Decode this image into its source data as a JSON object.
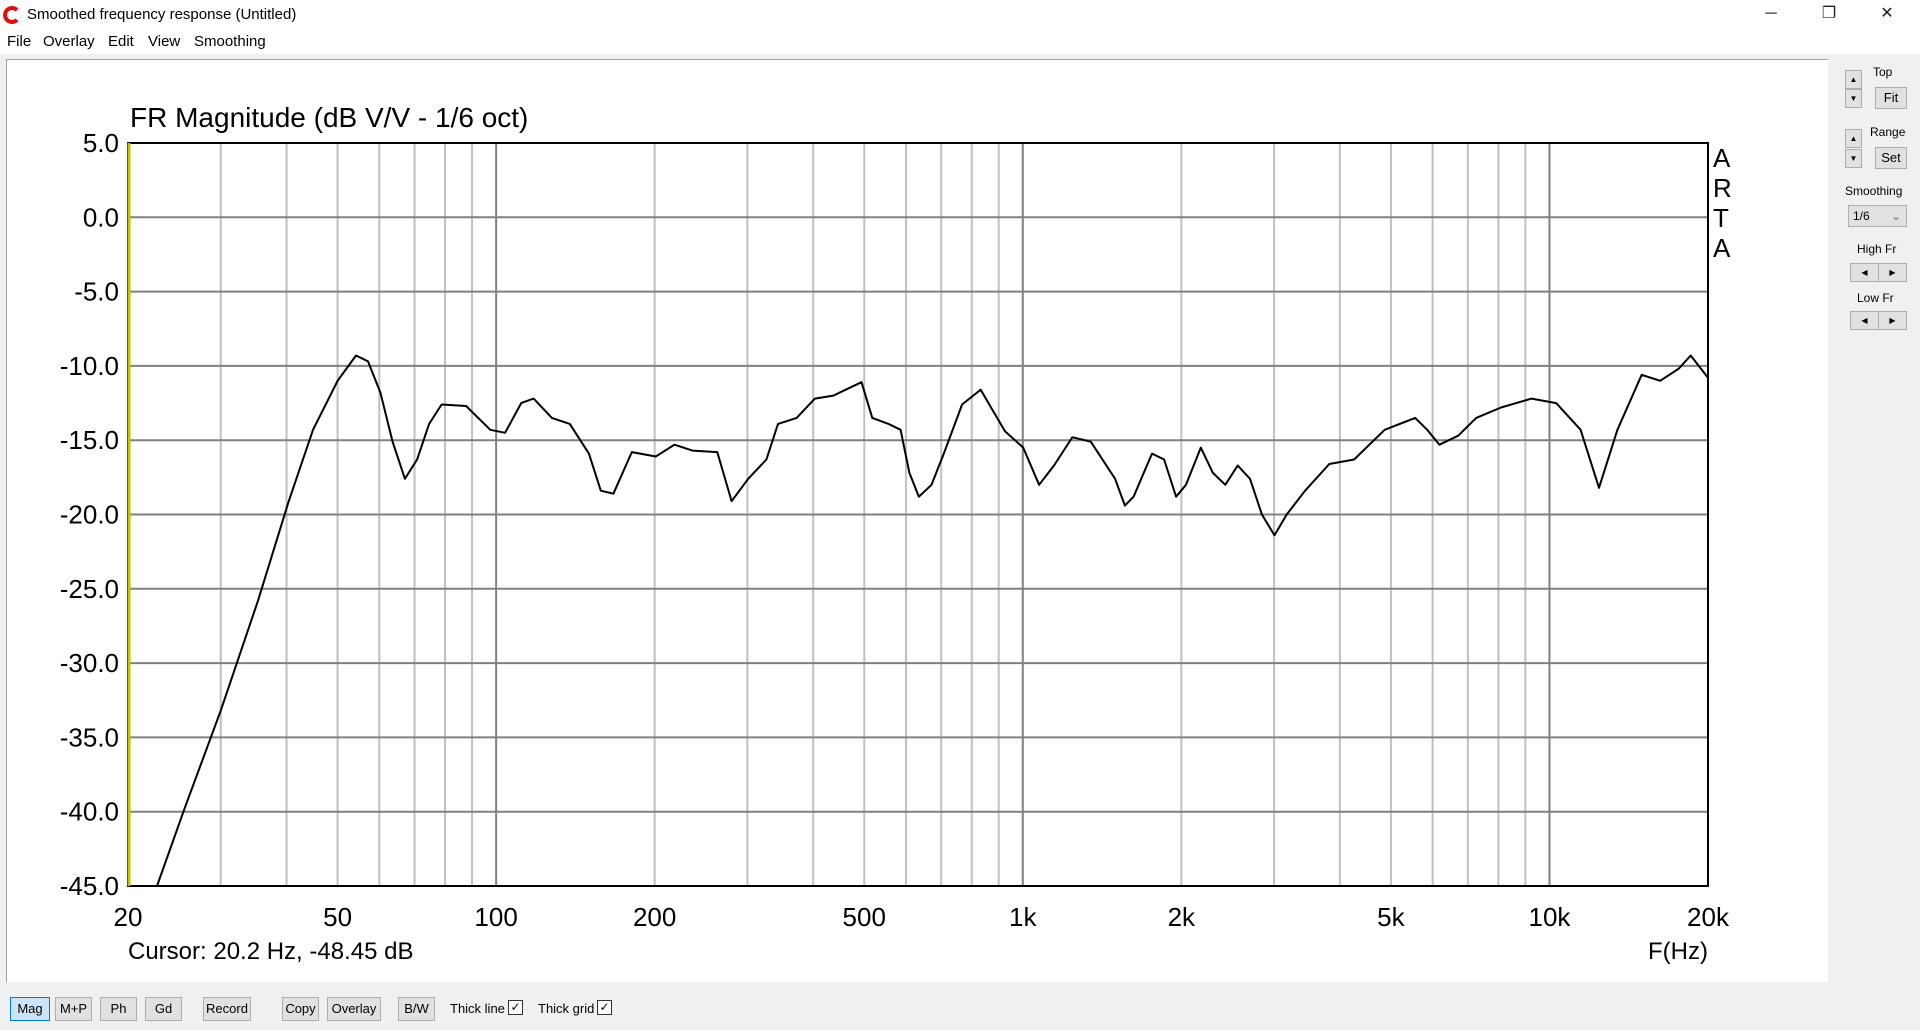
{
  "window": {
    "title": "Smoothed frequency response (Untitled)",
    "minimize": "─",
    "maximize": "❐",
    "close": "✕"
  },
  "menu": [
    "File",
    "Overlay",
    "Edit",
    "View",
    "Smoothing"
  ],
  "side": {
    "top_label": "Top",
    "fit": "Fit",
    "range_label": "Range",
    "set": "Set",
    "smoothing_label": "Smoothing",
    "smoothing_value": "1/6",
    "high_fr": "High Fr",
    "low_fr": "Low Fr",
    "up": "▲",
    "down": "▼",
    "left": "◀",
    "right": "▶"
  },
  "toolbar": {
    "buttons": [
      "Mag",
      "M+P",
      "Ph",
      "Gd",
      "Record",
      "Copy",
      "Overlay",
      "B/W"
    ],
    "active": "Mag",
    "thick_line": "Thick line",
    "thick_line_checked": true,
    "thick_grid": "Thick grid",
    "thick_grid_checked": true,
    "check": "✓"
  },
  "chart_data": {
    "type": "line",
    "title": "FR Magnitude (dB V/V - 1/6 oct)",
    "xlabel": "F(Hz)",
    "xscale": "log",
    "xlim": [
      20,
      20000
    ],
    "ylim": [
      -45,
      5
    ],
    "grid": true,
    "watermark": "ARTA",
    "cursor": "Cursor: 20.2 Hz, -48.45 dB",
    "yticks": [
      "5.0",
      "0.0",
      "-5.0",
      "-10.0",
      "-15.0",
      "-20.0",
      "-25.0",
      "-30.0",
      "-35.0",
      "-40.0",
      "-45.0"
    ],
    "xticks": [
      {
        "v": 20,
        "l": "20"
      },
      {
        "v": 50,
        "l": "50"
      },
      {
        "v": 100,
        "l": "100"
      },
      {
        "v": 200,
        "l": "200"
      },
      {
        "v": 500,
        "l": "500"
      },
      {
        "v": 1000,
        "l": "1k"
      },
      {
        "v": 2000,
        "l": "2k"
      },
      {
        "v": 5000,
        "l": "5k"
      },
      {
        "v": 10000,
        "l": "10k"
      },
      {
        "v": 20000,
        "l": "20k"
      }
    ],
    "line_color": "#000000",
    "cursor_line_color": "#c8c000",
    "series": [
      {
        "points": [
          [
            22.7,
            -45
          ],
          [
            25.6,
            -39.8
          ],
          [
            30,
            -33.2
          ],
          [
            35.3,
            -25.8
          ],
          [
            40.3,
            -19.2
          ],
          [
            44.9,
            -14.3
          ],
          [
            50,
            -11
          ],
          [
            54.2,
            -9.3
          ],
          [
            57.1,
            -9.7
          ],
          [
            60.3,
            -11.8
          ],
          [
            63.6,
            -15.1
          ],
          [
            67.1,
            -17.6
          ],
          [
            70.8,
            -16.3
          ],
          [
            74.6,
            -13.9
          ],
          [
            78.8,
            -12.6
          ],
          [
            87.7,
            -12.7
          ],
          [
            97.5,
            -14.3
          ],
          [
            104,
            -14.5
          ],
          [
            111.6,
            -12.5
          ],
          [
            117.8,
            -12.2
          ],
          [
            127.6,
            -13.5
          ],
          [
            138,
            -13.9
          ],
          [
            150,
            -15.9
          ],
          [
            158,
            -18.4
          ],
          [
            167,
            -18.6
          ],
          [
            181,
            -15.8
          ],
          [
            201,
            -16.1
          ],
          [
            218,
            -15.3
          ],
          [
            236,
            -15.7
          ],
          [
            263,
            -15.8
          ],
          [
            280,
            -19.1
          ],
          [
            301,
            -17.6
          ],
          [
            326,
            -16.3
          ],
          [
            343,
            -13.9
          ],
          [
            372,
            -13.5
          ],
          [
            403,
            -12.2
          ],
          [
            437,
            -12.0
          ],
          [
            461,
            -11.6
          ],
          [
            494,
            -11.1
          ],
          [
            518,
            -13.5
          ],
          [
            556,
            -13.9
          ],
          [
            586,
            -14.3
          ],
          [
            609,
            -17.2
          ],
          [
            635,
            -18.8
          ],
          [
            671,
            -18.0
          ],
          [
            708,
            -15.9
          ],
          [
            767,
            -12.6
          ],
          [
            832,
            -11.6
          ],
          [
            877,
            -13.0
          ],
          [
            925,
            -14.4
          ],
          [
            1002,
            -15.5
          ],
          [
            1074,
            -18.0
          ],
          [
            1146,
            -16.7
          ],
          [
            1242,
            -14.8
          ],
          [
            1346,
            -15.1
          ],
          [
            1497,
            -17.6
          ],
          [
            1563,
            -19.4
          ],
          [
            1623,
            -18.8
          ],
          [
            1759,
            -15.9
          ],
          [
            1855,
            -16.3
          ],
          [
            1955,
            -18.8
          ],
          [
            2041,
            -18
          ],
          [
            2178,
            -15.5
          ],
          [
            2296,
            -17.2
          ],
          [
            2424,
            -18
          ],
          [
            2559,
            -16.7
          ],
          [
            2700,
            -17.6
          ],
          [
            2845,
            -20
          ],
          [
            3005,
            -21.4
          ],
          [
            3170,
            -20
          ],
          [
            3436,
            -18.4
          ],
          [
            3820,
            -16.6
          ],
          [
            4256,
            -16.3
          ],
          [
            4865,
            -14.3
          ],
          [
            5560,
            -13.5
          ],
          [
            5860,
            -14.3
          ],
          [
            6181,
            -15.3
          ],
          [
            6710,
            -14.7
          ],
          [
            7260,
            -13.5
          ],
          [
            8090,
            -12.8
          ],
          [
            9250,
            -12.2
          ],
          [
            10300,
            -12.5
          ],
          [
            11460,
            -14.3
          ],
          [
            12420,
            -18.2
          ],
          [
            13460,
            -14.3
          ],
          [
            14970,
            -10.6
          ],
          [
            16220,
            -11
          ],
          [
            17580,
            -10.2
          ],
          [
            18540,
            -9.3
          ],
          [
            20000,
            -10.8
          ]
        ]
      }
    ]
  }
}
